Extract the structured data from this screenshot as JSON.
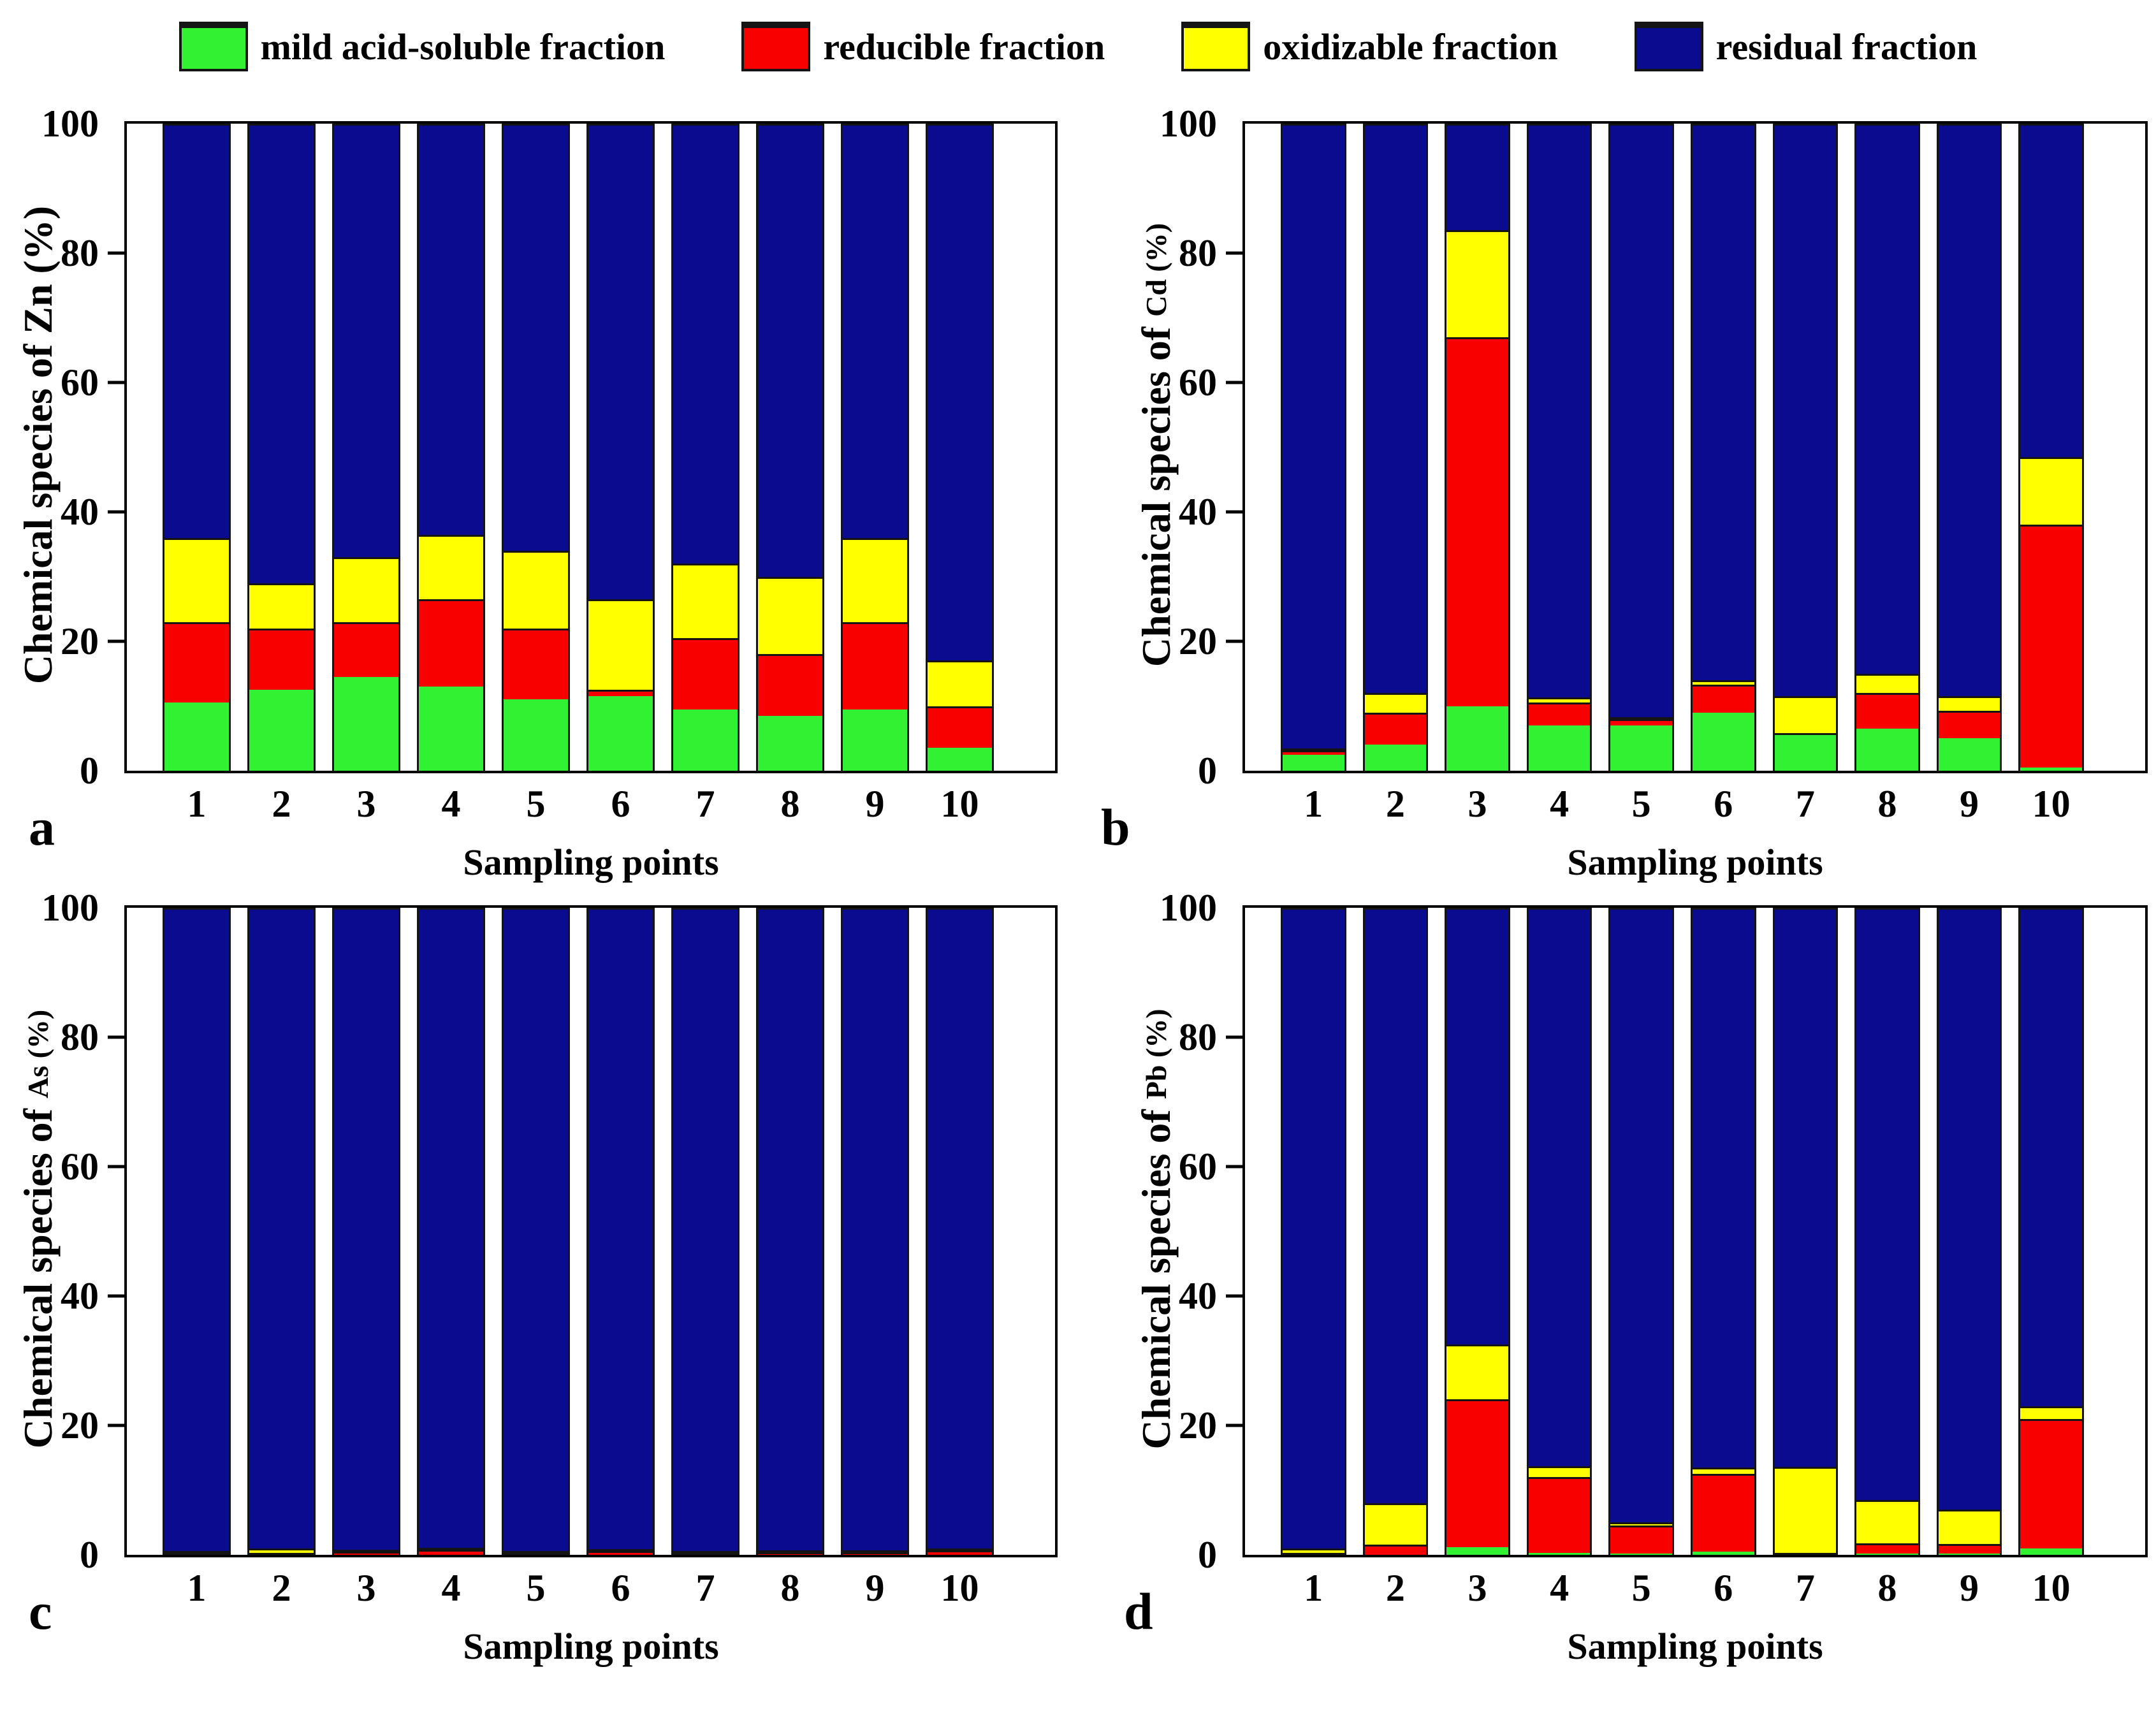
{
  "colors": {
    "green": "#32F032",
    "red": "#F80000",
    "yellow": "#FFFF00",
    "blue": "#0B0B8F",
    "outline": "#141414"
  },
  "legend": {
    "items": [
      {
        "label": "mild acid-soluble fraction",
        "color_key": "green"
      },
      {
        "label": "reducible fraction",
        "color_key": "red"
      },
      {
        "label": "oxidizable fraction",
        "color_key": "yellow"
      },
      {
        "label": "residual fraction",
        "color_key": "blue"
      }
    ]
  },
  "axes": {
    "y_ticks": [
      0,
      20,
      40,
      60,
      80,
      100
    ],
    "ylim": [
      0,
      100
    ],
    "x_title": "Sampling points",
    "y_label_prefix": "Chemical species of",
    "y_label_suffix": "(%)"
  },
  "chart_data": {
    "type": "bar",
    "stacked": true,
    "categories": [
      "1",
      "2",
      "3",
      "4",
      "5",
      "6",
      "7",
      "8",
      "9",
      "10"
    ],
    "fraction_names": [
      "mild acid-soluble fraction",
      "reducible fraction",
      "oxidizable fraction",
      "residual fraction"
    ],
    "ylim": [
      0,
      100
    ],
    "panels": [
      {
        "letter": "a",
        "element": "Zn",
        "title": "Chemical species of Zn (%)",
        "element_small": false,
        "series": [
          {
            "name": "mild acid-soluble fraction",
            "color_key": "green",
            "values": [
              10.5,
              12.5,
              14.5,
              13,
              11,
              11.5,
              9.5,
              8.5,
              9.5,
              3.5
            ]
          },
          {
            "name": "reducible fraction",
            "color_key": "red",
            "values": [
              12.5,
              9.5,
              8.5,
              13.5,
              11,
              1,
              11,
              9.5,
              13.5,
              6.5
            ]
          },
          {
            "name": "oxidizable fraction",
            "color_key": "yellow",
            "values": [
              13,
              7,
              10,
              10,
              12,
              14,
              11.5,
              12,
              13,
              7
            ]
          },
          {
            "name": "residual fraction",
            "color_key": "blue",
            "values": [
              64,
              71,
              67,
              63.5,
              66,
              73.5,
              68,
              70,
              64,
              83
            ]
          }
        ]
      },
      {
        "letter": "b",
        "element": "Cd",
        "title": "Chemical species of Cd (%)",
        "element_small": true,
        "series": [
          {
            "name": "mild acid-soluble fraction",
            "color_key": "green",
            "values": [
              2.5,
              4,
              10,
              7,
              7,
              9,
              5.5,
              6.5,
              5,
              0.5
            ]
          },
          {
            "name": "reducible fraction",
            "color_key": "red",
            "values": [
              0.7,
              5,
              57,
              3.5,
              1,
              4.3,
              0.3,
              5.5,
              4.3,
              37.5
            ]
          },
          {
            "name": "oxidizable fraction",
            "color_key": "yellow",
            "values": [
              0.3,
              3,
              16.5,
              0.8,
              0.3,
              0.7,
              5.7,
              3,
              2.2,
              10.5
            ]
          },
          {
            "name": "residual fraction",
            "color_key": "blue",
            "values": [
              96.5,
              88,
              16.5,
              88.7,
              91.7,
              86,
              88.5,
              85,
              88.5,
              51.5
            ]
          }
        ]
      },
      {
        "letter": "c",
        "element": "As",
        "title": "Chemical species of As (%)",
        "element_small": true,
        "series": [
          {
            "name": "mild acid-soluble fraction",
            "color_key": "green",
            "values": [
              0,
              0,
              0,
              0,
              0,
              0,
              0,
              0,
              0,
              0
            ]
          },
          {
            "name": "reducible fraction",
            "color_key": "red",
            "values": [
              0.2,
              0.3,
              0.5,
              0.8,
              0.1,
              0.6,
              0.1,
              0.4,
              0.4,
              0.7
            ]
          },
          {
            "name": "oxidizable fraction",
            "color_key": "yellow",
            "values": [
              0.1,
              0.7,
              0.1,
              0.1,
              0.1,
              0.1,
              0.1,
              0.1,
              0.1,
              0.1
            ]
          },
          {
            "name": "residual fraction",
            "color_key": "blue",
            "values": [
              99.7,
              99,
              99.4,
              99.1,
              99.8,
              99.3,
              99.8,
              99.5,
              99.5,
              99.2
            ]
          }
        ]
      },
      {
        "letter": "d",
        "element": "Pb",
        "title": "Chemical species of Pb (%)",
        "element_small": true,
        "series": [
          {
            "name": "mild acid-soluble fraction",
            "color_key": "green",
            "values": [
              0,
              0,
              1.2,
              0.3,
              0.2,
              0.5,
              0,
              0.2,
              0.2,
              1
            ]
          },
          {
            "name": "reducible fraction",
            "color_key": "red",
            "values": [
              0.3,
              1.6,
              22.8,
              11.7,
              4.3,
              12,
              0,
              1.6,
              1.5,
              20
            ]
          },
          {
            "name": "oxidizable fraction",
            "color_key": "yellow",
            "values": [
              0.7,
              6.4,
              8.5,
              1.7,
              0.5,
              1,
              13.3,
              6.7,
              5.3,
              2
            ]
          },
          {
            "name": "residual fraction",
            "color_key": "blue",
            "values": [
              99,
              92,
              67.5,
              86.3,
              95,
              86.5,
              86.7,
              91.5,
              93,
              77
            ]
          }
        ]
      }
    ]
  }
}
